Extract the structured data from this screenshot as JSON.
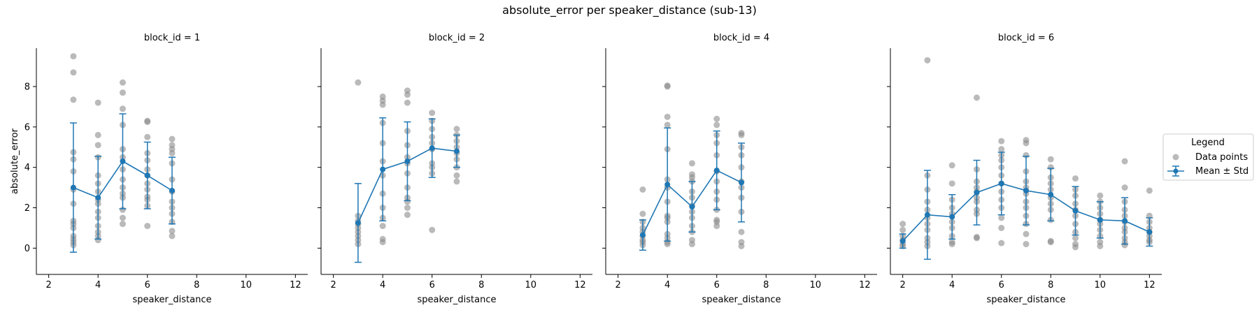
{
  "figure_title": "absolute_error per speaker_distance (sub-13)",
  "legend": {
    "title": "Legend",
    "entries": [
      {
        "label": "Data points",
        "marker": "gray-dot"
      },
      {
        "label": "Mean ± Std",
        "marker": "blue-line-errorbar"
      }
    ],
    "placement": "right"
  },
  "colors": {
    "points": "#8c8c8c",
    "mean_line": "#1f77b4",
    "axis": "#000000"
  },
  "chart_data": [
    {
      "type": "scatter",
      "title": "block_id = 1",
      "xlabel": "speaker_distance",
      "ylabel": "absolute_error",
      "xlim": [
        1.5,
        12.5
      ],
      "ylim": [
        -1.3,
        9.9
      ],
      "xticks": [
        2,
        4,
        6,
        8,
        10,
        12
      ],
      "yticks": [
        0,
        2,
        4,
        6,
        8
      ],
      "points": [
        {
          "x": 3,
          "ys": [
            9.5,
            8.7,
            7.35,
            4.75,
            4.4,
            3.8,
            2.9,
            2.2,
            1.35,
            1.2,
            1.0,
            0.6,
            0.45,
            0.3,
            0.15
          ]
        },
        {
          "x": 4,
          "ys": [
            7.2,
            5.6,
            5.1,
            4.5,
            3.6,
            3.2,
            2.8,
            2.4,
            2.2,
            1.8,
            1.5,
            1.1,
            0.8,
            0.6,
            0.4
          ]
        },
        {
          "x": 5,
          "ys": [
            8.2,
            7.7,
            6.9,
            6.1,
            4.9,
            4.5,
            3.9,
            3.4,
            3.0,
            2.7,
            2.5,
            1.9,
            1.5,
            1.2
          ]
        },
        {
          "x": 6,
          "ys": [
            6.3,
            6.25,
            5.5,
            4.7,
            4.35,
            3.9,
            3.6,
            3.2,
            2.9,
            2.55,
            2.4,
            2.1,
            1.1
          ]
        },
        {
          "x": 7,
          "ys": [
            5.4,
            5.1,
            4.9,
            4.7,
            4.2,
            3.4,
            2.8,
            2.3,
            2.0,
            1.7,
            1.3,
            0.85,
            0.6
          ]
        }
      ],
      "mean": {
        "x": [
          3,
          4,
          5,
          6,
          7
        ],
        "y": [
          3.0,
          2.5,
          4.3,
          3.6,
          2.85
        ],
        "std": [
          3.2,
          2.05,
          2.35,
          1.65,
          1.65
        ]
      }
    },
    {
      "type": "scatter",
      "title": "block_id = 2",
      "xlabel": "speaker_distance",
      "ylabel": "",
      "xlim": [
        1.5,
        12.5
      ],
      "ylim": [
        -1.3,
        9.9
      ],
      "xticks": [
        2,
        4,
        6,
        8,
        10,
        12
      ],
      "yticks": [
        0,
        2,
        4,
        6,
        8
      ],
      "points": [
        {
          "x": 3,
          "ys": [
            8.2,
            1.6,
            1.35,
            1.2,
            1.0,
            0.8,
            0.6,
            0.4,
            0.2
          ]
        },
        {
          "x": 4,
          "ys": [
            7.5,
            7.3,
            7.1,
            6.2,
            5.2,
            4.3,
            3.6,
            2.7,
            2.0,
            1.5,
            1.1,
            0.45,
            0.3
          ]
        },
        {
          "x": 5,
          "ys": [
            7.8,
            7.6,
            7.2,
            5.8,
            5.1,
            4.5,
            4.2,
            3.7,
            3.0,
            2.5,
            2.3,
            2.0,
            1.65
          ]
        },
        {
          "x": 6,
          "ys": [
            6.7,
            6.3,
            5.9,
            5.5,
            5.2,
            4.9,
            4.2,
            4.0,
            3.7,
            0.9
          ]
        },
        {
          "x": 7,
          "ys": [
            5.9,
            5.6,
            5.3,
            5.0,
            4.7,
            4.4,
            4.0,
            3.6,
            3.3
          ]
        }
      ],
      "mean": {
        "x": [
          3,
          4,
          5,
          6,
          7
        ],
        "y": [
          1.25,
          3.9,
          4.3,
          4.95,
          4.8
        ],
        "std": [
          1.95,
          2.55,
          1.95,
          1.45,
          0.8
        ]
      }
    },
    {
      "type": "scatter",
      "title": "block_id = 4",
      "xlabel": "speaker_distance",
      "ylabel": "",
      "xlim": [
        1.5,
        12.5
      ],
      "ylim": [
        -1.3,
        9.9
      ],
      "xticks": [
        2,
        4,
        6,
        8,
        10,
        12
      ],
      "yticks": [
        0,
        2,
        4,
        6,
        8
      ],
      "points": [
        {
          "x": 3,
          "ys": [
            2.9,
            1.7,
            1.3,
            1.0,
            0.8,
            0.6,
            0.4,
            0.3,
            0.15
          ]
        },
        {
          "x": 4,
          "ys": [
            8.05,
            8.0,
            6.5,
            6.1,
            4.9,
            3.4,
            3.0,
            2.3,
            1.6,
            1.5,
            1.3,
            0.7,
            0.5,
            0.3,
            0.2
          ]
        },
        {
          "x": 5,
          "ys": [
            4.2,
            3.65,
            3.5,
            3.3,
            2.8,
            2.5,
            2.1,
            1.8,
            1.5,
            1.1,
            0.8,
            0.4,
            0.2
          ]
        },
        {
          "x": 6,
          "ys": [
            6.4,
            6.1,
            5.6,
            5.2,
            4.6,
            3.8,
            3.3,
            2.8,
            2.4,
            1.9,
            1.4,
            1.3,
            1.1
          ]
        },
        {
          "x": 7,
          "ys": [
            5.7,
            5.6,
            5.0,
            4.6,
            4.0,
            3.3,
            3.0,
            2.5,
            1.8,
            0.8,
            0.3,
            0.1
          ]
        }
      ],
      "mean": {
        "x": [
          3,
          4,
          5,
          6,
          7
        ],
        "y": [
          0.65,
          3.15,
          2.05,
          3.85,
          3.25
        ],
        "std": [
          0.75,
          2.8,
          1.25,
          1.95,
          1.95
        ]
      }
    },
    {
      "type": "scatter",
      "title": "block_id = 6",
      "xlabel": "speaker_distance",
      "ylabel": "",
      "xlim": [
        1.5,
        12.5
      ],
      "ylim": [
        -1.3,
        9.9
      ],
      "xticks": [
        2,
        4,
        6,
        8,
        10,
        12
      ],
      "yticks": [
        0,
        2,
        4,
        6,
        8
      ],
      "points": [
        {
          "x": 2,
          "ys": [
            1.2,
            0.9,
            0.6,
            0.4,
            0.2,
            0.1
          ]
        },
        {
          "x": 3,
          "ys": [
            9.3,
            3.6,
            2.9,
            2.3,
            1.9,
            1.5,
            1.2,
            0.9,
            0.5,
            0.3,
            0.1
          ]
        },
        {
          "x": 4,
          "ys": [
            4.1,
            3.2,
            2.4,
            2.0,
            1.7,
            1.3,
            1.0,
            0.6,
            0.3,
            0.2
          ]
        },
        {
          "x": 5,
          "ys": [
            7.45,
            3.9,
            3.3,
            3.0,
            2.8,
            2.5,
            2.3,
            1.9,
            1.7,
            0.55,
            0.5
          ]
        },
        {
          "x": 6,
          "ys": [
            5.3,
            4.9,
            4.6,
            4.35,
            4.0,
            3.6,
            3.2,
            2.8,
            2.4,
            2.0,
            1.5,
            1.0,
            0.25
          ]
        },
        {
          "x": 7,
          "ys": [
            5.35,
            5.2,
            4.6,
            3.8,
            3.3,
            3.0,
            2.7,
            2.3,
            2.0,
            1.6,
            1.2,
            0.7,
            0.2
          ]
        },
        {
          "x": 8,
          "ys": [
            4.4,
            4.0,
            3.5,
            3.2,
            2.9,
            2.5,
            2.2,
            1.9,
            1.4,
            0.35,
            0.3
          ]
        },
        {
          "x": 9,
          "ys": [
            3.45,
            2.9,
            2.6,
            2.2,
            1.9,
            1.6,
            1.2,
            0.8,
            0.5,
            0.2,
            0.05
          ]
        },
        {
          "x": 10,
          "ys": [
            2.6,
            2.3,
            2.0,
            1.7,
            1.4,
            1.2,
            0.9,
            0.6,
            0.3,
            0.1
          ]
        },
        {
          "x": 11,
          "ys": [
            4.3,
            3.0,
            2.3,
            1.9,
            1.6,
            1.3,
            1.0,
            0.8,
            0.5,
            0.3,
            0.15
          ]
        },
        {
          "x": 12,
          "ys": [
            2.85,
            1.6,
            1.3,
            1.0,
            0.8,
            0.6,
            0.4,
            0.3
          ]
        }
      ],
      "mean": {
        "x": [
          2,
          3,
          4,
          5,
          6,
          7,
          8,
          9,
          10,
          11,
          12
        ],
        "y": [
          0.35,
          1.65,
          1.55,
          2.75,
          3.2,
          2.85,
          2.65,
          1.85,
          1.4,
          1.35,
          0.8
        ],
        "std": [
          0.35,
          2.2,
          1.1,
          1.6,
          1.55,
          1.7,
          1.3,
          1.2,
          0.9,
          1.15,
          0.7
        ]
      }
    }
  ]
}
